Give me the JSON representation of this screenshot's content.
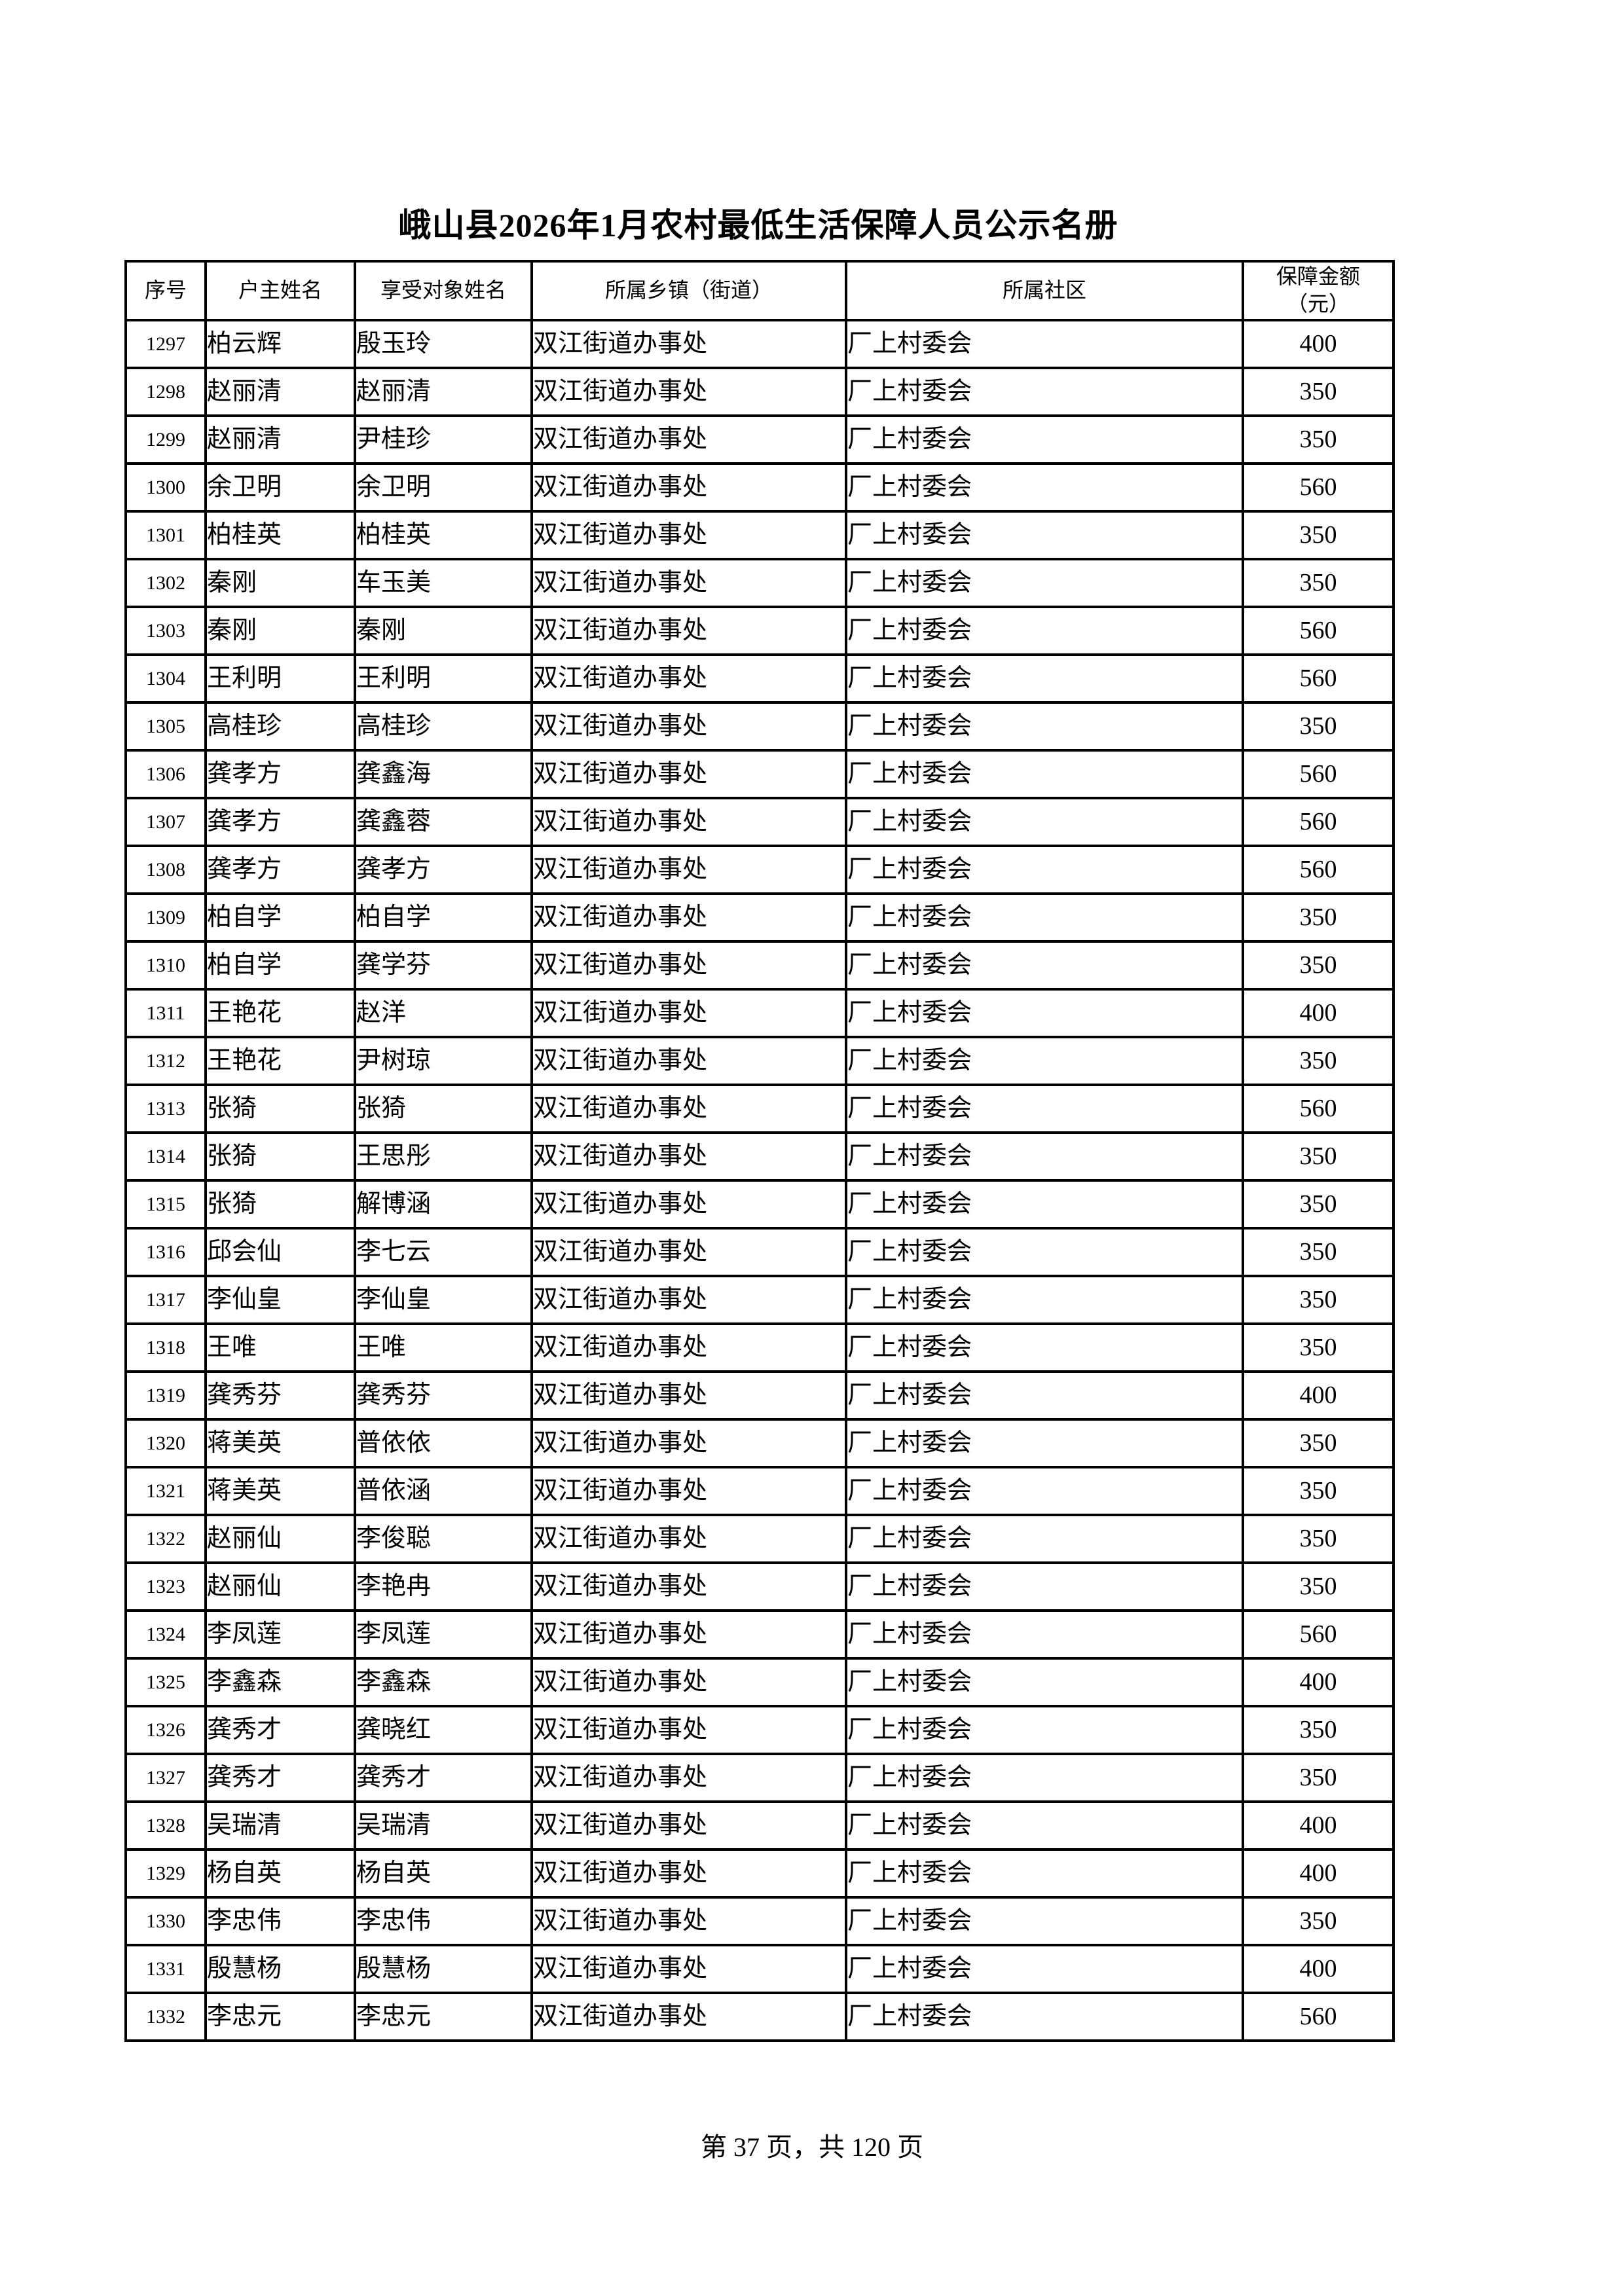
{
  "title": "峨山县2026年1月农村最低生活保障人员公示名册",
  "table": {
    "headers": [
      "序号",
      "户主姓名",
      "享受对象姓名",
      "所属乡镇（街道）",
      "所属社区",
      "保障金额\n（元）"
    ],
    "rows": [
      {
        "seq": "1297",
        "household": "柏云辉",
        "beneficiary": "殷玉玲",
        "township": "双江街道办事处",
        "community": "厂上村委会",
        "amount": "400"
      },
      {
        "seq": "1298",
        "household": "赵丽清",
        "beneficiary": "赵丽清",
        "township": "双江街道办事处",
        "community": "厂上村委会",
        "amount": "350"
      },
      {
        "seq": "1299",
        "household": "赵丽清",
        "beneficiary": "尹桂珍",
        "township": "双江街道办事处",
        "community": "厂上村委会",
        "amount": "350"
      },
      {
        "seq": "1300",
        "household": "余卫明",
        "beneficiary": "余卫明",
        "township": "双江街道办事处",
        "community": "厂上村委会",
        "amount": "560"
      },
      {
        "seq": "1301",
        "household": "柏桂英",
        "beneficiary": "柏桂英",
        "township": "双江街道办事处",
        "community": "厂上村委会",
        "amount": "350"
      },
      {
        "seq": "1302",
        "household": "秦刚",
        "beneficiary": "车玉美",
        "township": "双江街道办事处",
        "community": "厂上村委会",
        "amount": "350"
      },
      {
        "seq": "1303",
        "household": "秦刚",
        "beneficiary": "秦刚",
        "township": "双江街道办事处",
        "community": "厂上村委会",
        "amount": "560"
      },
      {
        "seq": "1304",
        "household": "王利明",
        "beneficiary": "王利明",
        "township": "双江街道办事处",
        "community": "厂上村委会",
        "amount": "560"
      },
      {
        "seq": "1305",
        "household": "高桂珍",
        "beneficiary": "高桂珍",
        "township": "双江街道办事处",
        "community": "厂上村委会",
        "amount": "350"
      },
      {
        "seq": "1306",
        "household": "龚孝方",
        "beneficiary": "龚鑫海",
        "township": "双江街道办事处",
        "community": "厂上村委会",
        "amount": "560"
      },
      {
        "seq": "1307",
        "household": "龚孝方",
        "beneficiary": "龚鑫蓉",
        "township": "双江街道办事处",
        "community": "厂上村委会",
        "amount": "560"
      },
      {
        "seq": "1308",
        "household": "龚孝方",
        "beneficiary": "龚孝方",
        "township": "双江街道办事处",
        "community": "厂上村委会",
        "amount": "560"
      },
      {
        "seq": "1309",
        "household": "柏自学",
        "beneficiary": "柏自学",
        "township": "双江街道办事处",
        "community": "厂上村委会",
        "amount": "350"
      },
      {
        "seq": "1310",
        "household": "柏自学",
        "beneficiary": "龚学芬",
        "township": "双江街道办事处",
        "community": "厂上村委会",
        "amount": "350"
      },
      {
        "seq": "1311",
        "household": "王艳花",
        "beneficiary": "赵洋",
        "township": "双江街道办事处",
        "community": "厂上村委会",
        "amount": "400"
      },
      {
        "seq": "1312",
        "household": "王艳花",
        "beneficiary": "尹树琼",
        "township": "双江街道办事处",
        "community": "厂上村委会",
        "amount": "350"
      },
      {
        "seq": "1313",
        "household": "张猗",
        "beneficiary": "张猗",
        "township": "双江街道办事处",
        "community": "厂上村委会",
        "amount": "560"
      },
      {
        "seq": "1314",
        "household": "张猗",
        "beneficiary": "王思彤",
        "township": "双江街道办事处",
        "community": "厂上村委会",
        "amount": "350"
      },
      {
        "seq": "1315",
        "household": "张猗",
        "beneficiary": "解博涵",
        "township": "双江街道办事处",
        "community": "厂上村委会",
        "amount": "350"
      },
      {
        "seq": "1316",
        "household": "邱会仙",
        "beneficiary": "李七云",
        "township": "双江街道办事处",
        "community": "厂上村委会",
        "amount": "350"
      },
      {
        "seq": "1317",
        "household": "李仙皇",
        "beneficiary": "李仙皇",
        "township": "双江街道办事处",
        "community": "厂上村委会",
        "amount": "350"
      },
      {
        "seq": "1318",
        "household": "王唯",
        "beneficiary": "王唯",
        "township": "双江街道办事处",
        "community": "厂上村委会",
        "amount": "350"
      },
      {
        "seq": "1319",
        "household": "龚秀芬",
        "beneficiary": "龚秀芬",
        "township": "双江街道办事处",
        "community": "厂上村委会",
        "amount": "400"
      },
      {
        "seq": "1320",
        "household": "蒋美英",
        "beneficiary": "普依依",
        "township": "双江街道办事处",
        "community": "厂上村委会",
        "amount": "350"
      },
      {
        "seq": "1321",
        "household": "蒋美英",
        "beneficiary": "普依涵",
        "township": "双江街道办事处",
        "community": "厂上村委会",
        "amount": "350"
      },
      {
        "seq": "1322",
        "household": "赵丽仙",
        "beneficiary": "李俊聪",
        "township": "双江街道办事处",
        "community": "厂上村委会",
        "amount": "350"
      },
      {
        "seq": "1323",
        "household": "赵丽仙",
        "beneficiary": "李艳冉",
        "township": "双江街道办事处",
        "community": "厂上村委会",
        "amount": "350"
      },
      {
        "seq": "1324",
        "household": "李凤莲",
        "beneficiary": "李凤莲",
        "township": "双江街道办事处",
        "community": "厂上村委会",
        "amount": "560"
      },
      {
        "seq": "1325",
        "household": "李鑫森",
        "beneficiary": "李鑫森",
        "township": "双江街道办事处",
        "community": "厂上村委会",
        "amount": "400"
      },
      {
        "seq": "1326",
        "household": "龚秀才",
        "beneficiary": "龚晓红",
        "township": "双江街道办事处",
        "community": "厂上村委会",
        "amount": "350"
      },
      {
        "seq": "1327",
        "household": "龚秀才",
        "beneficiary": "龚秀才",
        "township": "双江街道办事处",
        "community": "厂上村委会",
        "amount": "350"
      },
      {
        "seq": "1328",
        "household": "吴瑞清",
        "beneficiary": "吴瑞清",
        "township": "双江街道办事处",
        "community": "厂上村委会",
        "amount": "400"
      },
      {
        "seq": "1329",
        "household": "杨自英",
        "beneficiary": "杨自英",
        "township": "双江街道办事处",
        "community": "厂上村委会",
        "amount": "400"
      },
      {
        "seq": "1330",
        "household": "李忠伟",
        "beneficiary": "李忠伟",
        "township": "双江街道办事处",
        "community": "厂上村委会",
        "amount": "350"
      },
      {
        "seq": "1331",
        "household": "殷慧杨",
        "beneficiary": "殷慧杨",
        "township": "双江街道办事处",
        "community": "厂上村委会",
        "amount": "400"
      },
      {
        "seq": "1332",
        "household": "李忠元",
        "beneficiary": "李忠元",
        "township": "双江街道办事处",
        "community": "厂上村委会",
        "amount": "560"
      }
    ]
  },
  "footer": {
    "text": "第 37 页，共 120 页"
  }
}
